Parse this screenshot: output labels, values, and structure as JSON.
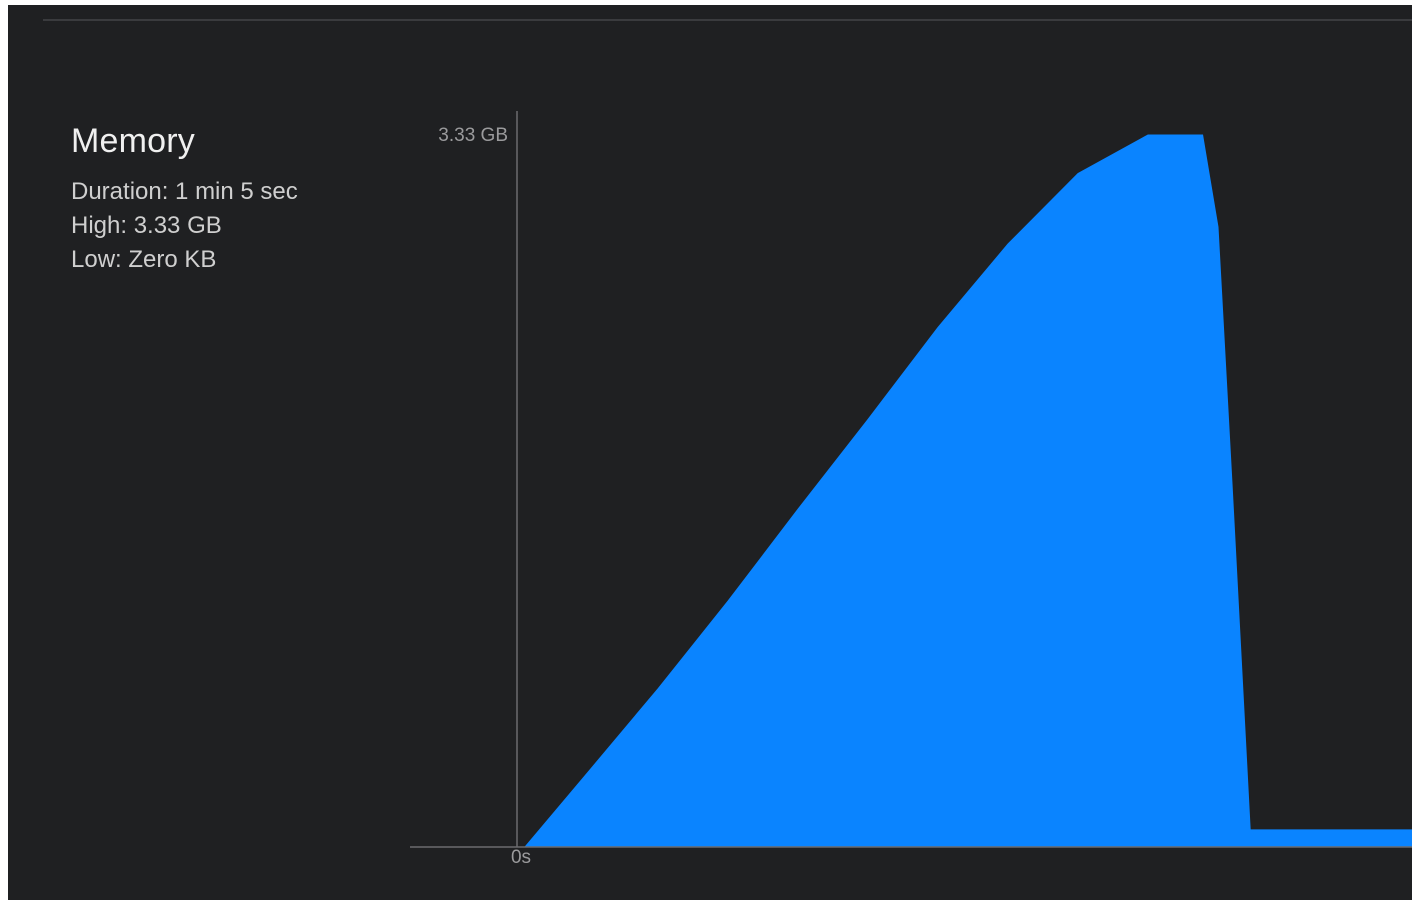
{
  "panel": {
    "title": "Memory",
    "duration": "Duration: 1 min 5 sec",
    "high": "High: 3.33 GB",
    "low": "Low: Zero KB"
  },
  "colors": {
    "background": "#1f2022",
    "fill": "#0a84ff",
    "axis": "#6b6b6e"
  },
  "chart_data": {
    "type": "area",
    "title": "",
    "xlabel": "",
    "ylabel": "",
    "y_max_label": "3.33 GB",
    "x_start_label": "0s",
    "xlim": [
      0,
      65
    ],
    "ylim": [
      0,
      3.33
    ],
    "series": [
      {
        "values_x": [
          0.5,
          5,
          10,
          15,
          20,
          25,
          30,
          35,
          40,
          45,
          48.9,
          50,
          51,
          52.3,
          52.6,
          68.1,
          68.1
        ],
        "values_y": [
          0.0,
          0.35,
          0.74,
          1.15,
          1.58,
          2.0,
          2.43,
          2.82,
          3.15,
          3.33,
          3.33,
          2.9,
          1.7,
          0.08,
          0.08,
          0.08,
          0.0
        ]
      }
    ]
  }
}
